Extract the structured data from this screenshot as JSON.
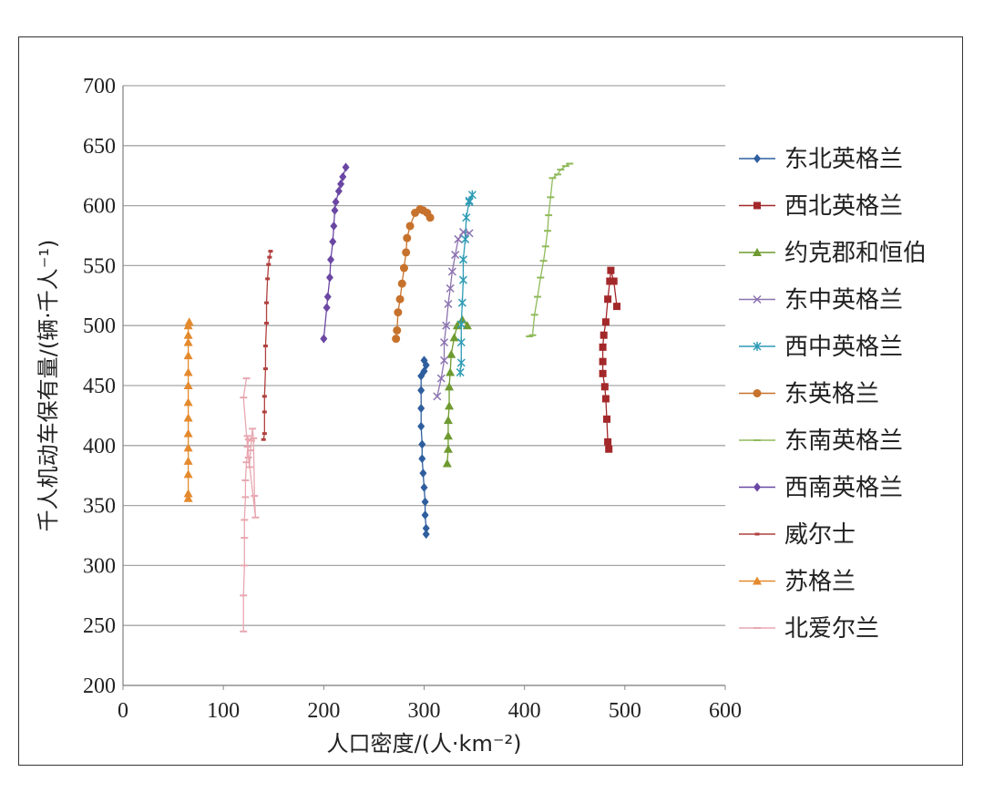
{
  "chart_data": {
    "type": "line",
    "xlabel": "人口密度/(人·km⁻²)",
    "ylabel": "千人机动车保有量/(辆·千人⁻¹)",
    "xlim": [
      0,
      600
    ],
    "ylim": [
      200,
      700
    ],
    "xticks": [
      "0",
      "100",
      "200",
      "300",
      "400",
      "500",
      "600"
    ],
    "yticks": [
      "200",
      "250",
      "300",
      "350",
      "400",
      "450",
      "500",
      "550",
      "600",
      "650",
      "700"
    ],
    "grid": "horizontal",
    "legend_position": "right",
    "series": [
      {
        "name": "东北英格兰",
        "color": "#2e5e9e",
        "marker": "diamond",
        "points": [
          [
            302,
            326
          ],
          [
            302,
            331
          ],
          [
            301,
            342
          ],
          [
            301,
            353
          ],
          [
            300,
            365
          ],
          [
            299,
            377
          ],
          [
            298,
            389
          ],
          [
            298,
            401
          ],
          [
            297,
            416
          ],
          [
            297,
            431
          ],
          [
            297,
            446
          ],
          [
            297,
            458
          ],
          [
            300,
            462
          ],
          [
            302,
            467
          ],
          [
            300,
            471
          ]
        ]
      },
      {
        "name": "西北英格兰",
        "color": "#a3282a",
        "marker": "square",
        "points": [
          [
            484,
            397
          ],
          [
            483,
            403
          ],
          [
            482,
            422
          ],
          [
            481,
            439
          ],
          [
            480,
            449
          ],
          [
            478,
            460
          ],
          [
            478,
            470
          ],
          [
            478,
            482
          ],
          [
            479,
            492
          ],
          [
            481,
            503
          ],
          [
            483,
            522
          ],
          [
            485,
            537
          ],
          [
            486,
            546
          ],
          [
            489,
            537
          ],
          [
            492,
            516
          ]
        ]
      },
      {
        "name": "约克郡和恒伯",
        "color": "#6e9a2f",
        "marker": "triangle",
        "points": [
          [
            323,
            385
          ],
          [
            324,
            397
          ],
          [
            324,
            408
          ],
          [
            324,
            421
          ],
          [
            325,
            433
          ],
          [
            325,
            449
          ],
          [
            326,
            461
          ],
          [
            327,
            476
          ],
          [
            330,
            490
          ],
          [
            333,
            500
          ],
          [
            338,
            505
          ],
          [
            343,
            500
          ]
        ]
      },
      {
        "name": "东中英格兰",
        "color": "#8c72b0",
        "marker": "x",
        "points": [
          [
            313,
            441
          ],
          [
            317,
            456
          ],
          [
            320,
            471
          ],
          [
            320,
            486
          ],
          [
            322,
            500
          ],
          [
            324,
            518
          ],
          [
            326,
            531
          ],
          [
            328,
            545
          ],
          [
            331,
            559
          ],
          [
            334,
            572
          ],
          [
            339,
            578
          ],
          [
            345,
            577
          ]
        ]
      },
      {
        "name": "西中英格兰",
        "color": "#2f9cb5",
        "marker": "star",
        "points": [
          [
            336,
            461
          ],
          [
            337,
            469
          ],
          [
            337,
            486
          ],
          [
            337,
            501
          ],
          [
            338,
            519
          ],
          [
            339,
            538
          ],
          [
            339,
            555
          ],
          [
            341,
            572
          ],
          [
            342,
            590
          ],
          [
            345,
            604
          ],
          [
            348,
            609
          ],
          [
            345,
            603
          ]
        ]
      },
      {
        "name": "东英格兰",
        "color": "#c7722c",
        "marker": "circle",
        "points": [
          [
            272,
            489
          ],
          [
            273,
            496
          ],
          [
            274,
            511
          ],
          [
            276,
            522
          ],
          [
            278,
            535
          ],
          [
            280,
            548
          ],
          [
            282,
            561
          ],
          [
            283,
            573
          ],
          [
            286,
            583
          ],
          [
            291,
            594
          ],
          [
            296,
            597
          ],
          [
            299,
            596
          ],
          [
            303,
            594
          ],
          [
            306,
            590
          ]
        ]
      },
      {
        "name": "东南英格兰",
        "color": "#8fba5a",
        "marker": "dash",
        "points": [
          [
            405,
            491
          ],
          [
            408,
            492
          ],
          [
            410,
            509
          ],
          [
            413,
            524
          ],
          [
            416,
            540
          ],
          [
            419,
            554
          ],
          [
            421,
            566
          ],
          [
            423,
            579
          ],
          [
            424,
            592
          ],
          [
            426,
            607
          ],
          [
            428,
            623
          ],
          [
            433,
            626
          ],
          [
            436,
            630
          ],
          [
            441,
            633
          ],
          [
            445,
            635
          ]
        ]
      },
      {
        "name": "西南英格兰",
        "color": "#6b47a3",
        "marker": "diamond",
        "points": [
          [
            200,
            489
          ],
          [
            203,
            515
          ],
          [
            204,
            524
          ],
          [
            206,
            540
          ],
          [
            207,
            555
          ],
          [
            209,
            570
          ],
          [
            210,
            583
          ],
          [
            211,
            596
          ],
          [
            212,
            603
          ],
          [
            215,
            612
          ],
          [
            217,
            618
          ],
          [
            219,
            624
          ],
          [
            222,
            632
          ]
        ]
      },
      {
        "name": "威尔士",
        "color": "#b0413e",
        "marker": "dot",
        "points": [
          [
            140,
            405
          ],
          [
            141,
            410
          ],
          [
            141,
            428
          ],
          [
            141,
            441
          ],
          [
            142,
            464
          ],
          [
            142,
            483
          ],
          [
            143,
            502
          ],
          [
            143,
            519
          ],
          [
            144,
            539
          ],
          [
            145,
            551
          ],
          [
            146,
            557
          ],
          [
            147,
            562
          ]
        ]
      },
      {
        "name": "苏格兰",
        "color": "#e48a2e",
        "marker": "triangle",
        "points": [
          [
            65,
            356
          ],
          [
            65,
            360
          ],
          [
            65,
            376
          ],
          [
            65,
            387
          ],
          [
            65,
            398
          ],
          [
            65,
            410
          ],
          [
            65,
            423
          ],
          [
            65,
            436
          ],
          [
            65,
            450
          ],
          [
            65,
            461
          ],
          [
            65,
            475
          ],
          [
            65,
            486
          ],
          [
            65,
            492
          ],
          [
            65,
            500
          ],
          [
            66,
            503
          ]
        ]
      },
      {
        "name": "北爱尔兰",
        "color": "#e8a7b0",
        "marker": "dash",
        "points": [
          [
            120,
            245
          ],
          [
            120,
            275
          ],
          [
            121,
            300
          ],
          [
            121,
            323
          ],
          [
            121,
            338
          ],
          [
            122,
            357
          ],
          [
            122,
            371
          ],
          [
            123,
            386
          ],
          [
            125,
            405
          ],
          [
            124,
            408
          ],
          [
            125,
            390
          ],
          [
            126,
            382
          ],
          [
            127,
            396
          ],
          [
            128,
            404
          ],
          [
            129,
            414
          ],
          [
            130,
            406
          ],
          [
            131,
            358
          ],
          [
            132,
            340
          ],
          [
            124,
            399
          ],
          [
            120,
            440
          ],
          [
            123,
            456
          ]
        ]
      }
    ]
  }
}
